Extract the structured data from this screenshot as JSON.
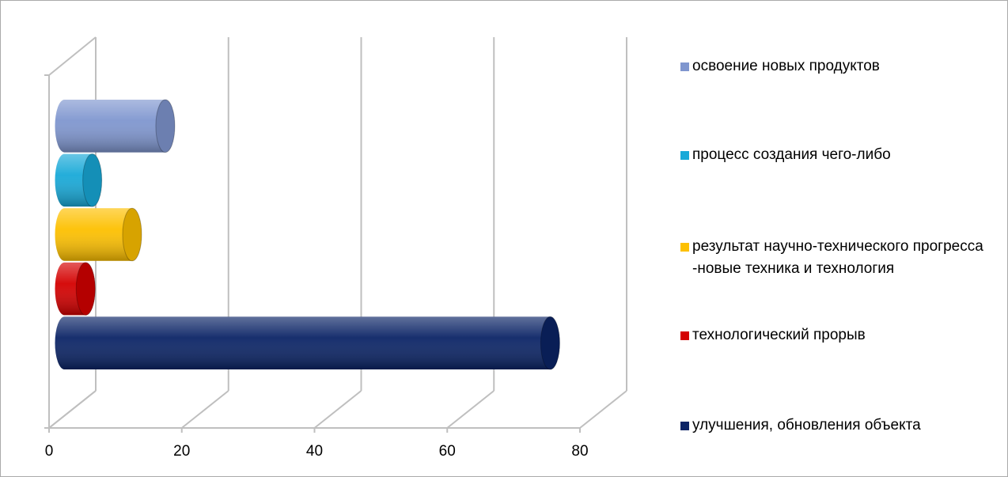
{
  "chart_data": {
    "type": "bar",
    "orientation": "horizontal",
    "series": [
      {
        "name": "освоение новых продуктов",
        "color": "#7f96cf",
        "values": [
          14
        ]
      },
      {
        "name": "процесс создания чего-либо",
        "color": "#18a9d8",
        "values": [
          3
        ]
      },
      {
        "name": "результат научно-технического прогресса -новые техника и технология",
        "color": "#fdc000",
        "values": [
          9
        ]
      },
      {
        "name": "технологический прорыв",
        "color": "#d40000",
        "values": [
          2
        ]
      },
      {
        "name": "улучшения, обновления объекта",
        "color": "#0b2466",
        "values": [
          72
        ]
      }
    ],
    "xlim": [
      0,
      80
    ],
    "xticks": [
      0,
      20,
      40,
      60,
      80
    ],
    "grid": true
  }
}
